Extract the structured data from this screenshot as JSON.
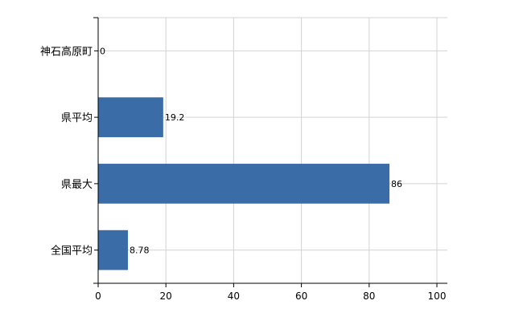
{
  "chart_data": {
    "type": "bar",
    "orientation": "horizontal",
    "categories": [
      "神石高原町",
      "県平均",
      "県最大",
      "全国平均"
    ],
    "values": [
      0,
      19.2,
      86,
      8.78
    ],
    "value_labels": [
      "0",
      "19.2",
      "86",
      "8.78"
    ],
    "xlim": [
      0,
      100
    ],
    "x_ticks": [
      0,
      20,
      40,
      60,
      80,
      100
    ],
    "x_tick_labels": [
      "0",
      "20",
      "40",
      "60",
      "80",
      "100"
    ],
    "grid": true,
    "legend": "none",
    "bar_color": "#3a6ca8",
    "grid_color": "#d3d3d3",
    "axis_color": "#000000"
  }
}
